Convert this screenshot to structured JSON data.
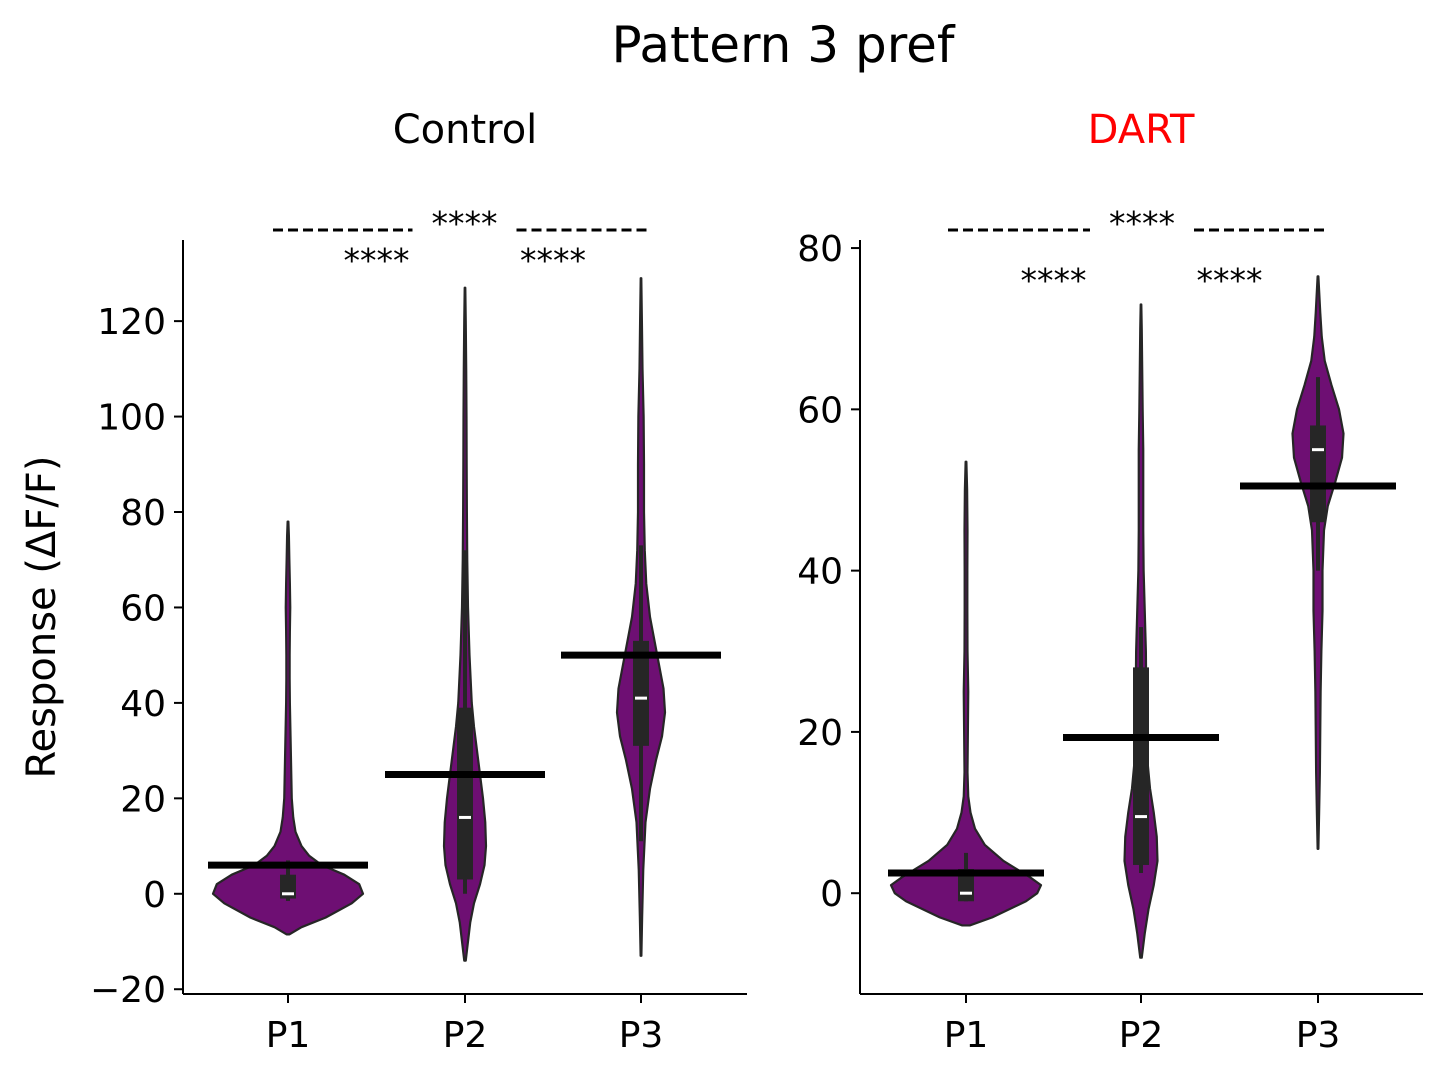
{
  "figure": {
    "title": "Pattern 3 pref"
  },
  "colors": {
    "violin_fill": "#6e0f73",
    "violin_edge": "#262626",
    "box": "#262626",
    "median": "#ffffff",
    "mean_bar": "#000000",
    "dart_title": "#ff0000",
    "control_title": "#000000"
  },
  "chart_data": [
    {
      "type": "violin",
      "title": "Control",
      "title_color": "#000000",
      "ylabel": "Response (ΔF/F)",
      "xlabel": "",
      "categories": [
        "P1",
        "P2",
        "P3"
      ],
      "ylim": [
        -21,
        137
      ],
      "yticks": [
        -20,
        0,
        20,
        40,
        60,
        80,
        100,
        120
      ],
      "ytick_labels": [
        "−20",
        "0",
        "20",
        "40",
        "60",
        "80",
        "100",
        "120"
      ],
      "grid": false,
      "groups": [
        {
          "name": "P1",
          "min": -8.5,
          "max": 78,
          "q1": -1,
          "median": 0,
          "q3": 4,
          "whisker_low": -1.5,
          "whisker_high": 7,
          "mean": 6,
          "density": [
            [
              -8.5,
              0.02
            ],
            [
              -7,
              0.18
            ],
            [
              -5,
              0.5
            ],
            [
              -2,
              0.85
            ],
            [
              0,
              1.0
            ],
            [
              2,
              0.95
            ],
            [
              4,
              0.75
            ],
            [
              6,
              0.45
            ],
            [
              8,
              0.28
            ],
            [
              10,
              0.18
            ],
            [
              13,
              0.1
            ],
            [
              16,
              0.07
            ],
            [
              20,
              0.05
            ],
            [
              24,
              0.045
            ],
            [
              28,
              0.04
            ],
            [
              32,
              0.035
            ],
            [
              36,
              0.03
            ],
            [
              40,
              0.025
            ],
            [
              45,
              0.022
            ],
            [
              50,
              0.022
            ],
            [
              55,
              0.025
            ],
            [
              60,
              0.03
            ],
            [
              65,
              0.025
            ],
            [
              70,
              0.018
            ],
            [
              75,
              0.012
            ],
            [
              78,
              0.005
            ]
          ]
        },
        {
          "name": "P2",
          "min": -14,
          "max": 127,
          "q1": 3,
          "median": 16,
          "q3": 39,
          "whisker_low": 0,
          "whisker_high": 72,
          "mean": 25,
          "density": [
            [
              -14,
              0.01
            ],
            [
              -10,
              0.04
            ],
            [
              -6,
              0.07
            ],
            [
              -2,
              0.12
            ],
            [
              2,
              0.2
            ],
            [
              6,
              0.26
            ],
            [
              10,
              0.28
            ],
            [
              15,
              0.27
            ],
            [
              20,
              0.24
            ],
            [
              25,
              0.2
            ],
            [
              30,
              0.16
            ],
            [
              35,
              0.12
            ],
            [
              40,
              0.09
            ],
            [
              50,
              0.06
            ],
            [
              60,
              0.04
            ],
            [
              70,
              0.03
            ],
            [
              80,
              0.025
            ],
            [
              90,
              0.022
            ],
            [
              100,
              0.02
            ],
            [
              110,
              0.016
            ],
            [
              120,
              0.01
            ],
            [
              127,
              0.004
            ]
          ]
        },
        {
          "name": "P3",
          "min": -13,
          "max": 129,
          "q1": 31,
          "median": 41,
          "q3": 53,
          "whisker_low": 11,
          "whisker_high": 73,
          "mean": 50,
          "density": [
            [
              -13,
              0.005
            ],
            [
              -5,
              0.015
            ],
            [
              5,
              0.03
            ],
            [
              15,
              0.06
            ],
            [
              22,
              0.12
            ],
            [
              28,
              0.2
            ],
            [
              33,
              0.28
            ],
            [
              38,
              0.32
            ],
            [
              43,
              0.3
            ],
            [
              48,
              0.24
            ],
            [
              53,
              0.18
            ],
            [
              58,
              0.12
            ],
            [
              65,
              0.07
            ],
            [
              72,
              0.05
            ],
            [
              80,
              0.04
            ],
            [
              90,
              0.04
            ],
            [
              100,
              0.035
            ],
            [
              110,
              0.02
            ],
            [
              120,
              0.012
            ],
            [
              129,
              0.004
            ]
          ]
        }
      ],
      "significance": [
        {
          "pair": [
            "P1",
            "P2"
          ],
          "label": "****"
        },
        {
          "pair": [
            "P2",
            "P3"
          ],
          "label": "****"
        },
        {
          "pair": [
            "P1",
            "P3"
          ],
          "label": "****"
        }
      ]
    },
    {
      "type": "violin",
      "title": "DART",
      "title_color": "#ff0000",
      "ylabel": "",
      "xlabel": "",
      "categories": [
        "P1",
        "P2",
        "P3"
      ],
      "ylim": [
        -12.5,
        81
      ],
      "yticks": [
        0,
        20,
        40,
        60,
        80
      ],
      "ytick_labels": [
        "0",
        "20",
        "40",
        "60",
        "80"
      ],
      "grid": false,
      "groups": [
        {
          "name": "P1",
          "min": -4,
          "max": 53.5,
          "q1": -1,
          "median": 0,
          "q3": 3,
          "whisker_low": -1,
          "whisker_high": 5,
          "mean": 2.5,
          "density": [
            [
              -4,
              0.05
            ],
            [
              -3,
              0.35
            ],
            [
              -1,
              0.8
            ],
            [
              0,
              0.95
            ],
            [
              1,
              1.0
            ],
            [
              2,
              0.85
            ],
            [
              4,
              0.5
            ],
            [
              6,
              0.25
            ],
            [
              8,
              0.12
            ],
            [
              10,
              0.06
            ],
            [
              12,
              0.03
            ],
            [
              15,
              0.02
            ],
            [
              20,
              0.025
            ],
            [
              25,
              0.03
            ],
            [
              30,
              0.02
            ],
            [
              35,
              0.018
            ],
            [
              40,
              0.018
            ],
            [
              45,
              0.02
            ],
            [
              50,
              0.015
            ],
            [
              53.5,
              0.005
            ]
          ]
        },
        {
          "name": "P2",
          "min": -8,
          "max": 73,
          "q1": 3.5,
          "median": 9.5,
          "q3": 28,
          "whisker_low": 2.5,
          "whisker_high": 33,
          "mean": 19.3,
          "density": [
            [
              -8,
              0.01
            ],
            [
              -5,
              0.05
            ],
            [
              -2,
              0.1
            ],
            [
              1,
              0.17
            ],
            [
              4,
              0.22
            ],
            [
              7,
              0.21
            ],
            [
              10,
              0.17
            ],
            [
              13,
              0.12
            ],
            [
              16,
              0.09
            ],
            [
              20,
              0.08
            ],
            [
              25,
              0.07
            ],
            [
              30,
              0.065
            ],
            [
              35,
              0.05
            ],
            [
              40,
              0.035
            ],
            [
              45,
              0.03
            ],
            [
              50,
              0.03
            ],
            [
              55,
              0.03
            ],
            [
              60,
              0.022
            ],
            [
              65,
              0.016
            ],
            [
              70,
              0.01
            ],
            [
              73,
              0.004
            ]
          ]
        },
        {
          "name": "P3",
          "min": 5.5,
          "max": 76.5,
          "q1": 46,
          "median": 55,
          "q3": 58,
          "whisker_low": 40,
          "whisker_high": 64,
          "mean": 50.5,
          "density": [
            [
              5.5,
              0.005
            ],
            [
              10,
              0.015
            ],
            [
              15,
              0.025
            ],
            [
              20,
              0.03
            ],
            [
              25,
              0.035
            ],
            [
              30,
              0.045
            ],
            [
              35,
              0.06
            ],
            [
              40,
              0.06
            ],
            [
              45,
              0.08
            ],
            [
              48,
              0.13
            ],
            [
              51,
              0.23
            ],
            [
              54,
              0.32
            ],
            [
              57,
              0.34
            ],
            [
              60,
              0.28
            ],
            [
              63,
              0.18
            ],
            [
              66,
              0.09
            ],
            [
              69,
              0.05
            ],
            [
              72,
              0.03
            ],
            [
              76.5,
              0.005
            ]
          ]
        }
      ],
      "significance": [
        {
          "pair": [
            "P1",
            "P2"
          ],
          "label": "****"
        },
        {
          "pair": [
            "P2",
            "P3"
          ],
          "label": "****"
        },
        {
          "pair": [
            "P1",
            "P3"
          ],
          "label": "****"
        }
      ]
    }
  ]
}
